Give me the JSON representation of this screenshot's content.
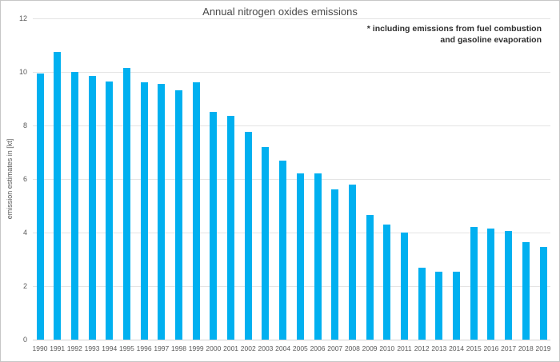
{
  "chart_data": {
    "type": "bar",
    "title": "Annual nitrogen oxides emissions",
    "annotation_lines": [
      "* including emissions from fuel combustion",
      "and gasoline evaporation"
    ],
    "xlabel": "",
    "ylabel": "emission estimates in [kt]",
    "ylim": [
      0,
      12
    ],
    "yticks": [
      0,
      2,
      4,
      6,
      8,
      10,
      12
    ],
    "grid": true,
    "legend": false,
    "bar_color": "#00B0F0",
    "categories": [
      "1990",
      "1991",
      "1992",
      "1993",
      "1994",
      "1995",
      "1996",
      "1997",
      "1998",
      "1999",
      "2000",
      "2001",
      "2002",
      "2003",
      "2004",
      "2005",
      "2006",
      "2007",
      "2008",
      "2009",
      "2010",
      "2011",
      "2012",
      "2013",
      "2014",
      "2015",
      "2016",
      "2017",
      "2018",
      "2019"
    ],
    "values": [
      9.95,
      10.75,
      10.0,
      9.85,
      9.65,
      10.15,
      9.6,
      9.55,
      9.3,
      9.6,
      8.5,
      8.35,
      7.75,
      7.2,
      6.7,
      6.2,
      6.2,
      5.6,
      5.8,
      4.65,
      4.3,
      4.0,
      2.7,
      2.55,
      2.55,
      4.2,
      4.15,
      4.05,
      3.65,
      3.45
    ]
  }
}
